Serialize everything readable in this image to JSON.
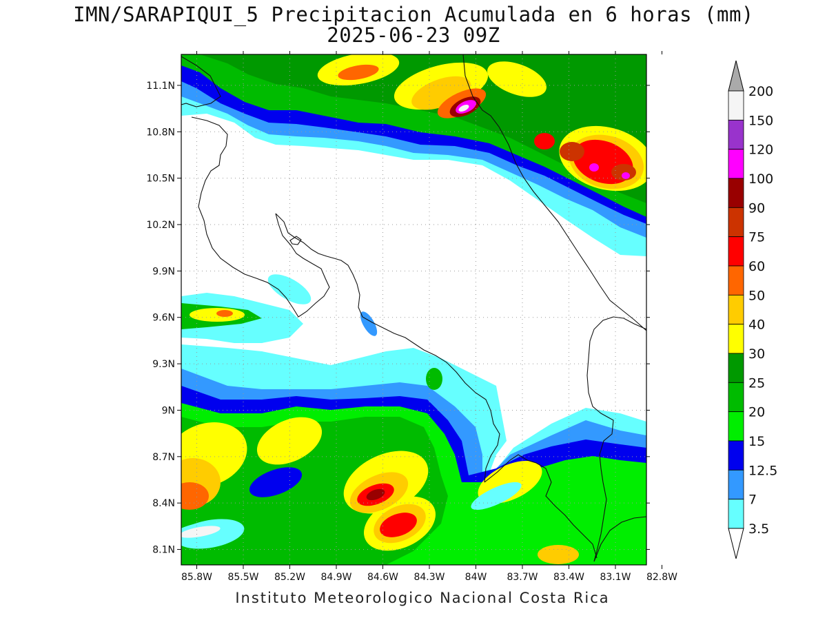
{
  "title": {
    "line1": "IMN/SARAPIQUI_5 Precipitacion Acumulada en 6 horas (mm)",
    "line2": "2025-06-23 09Z"
  },
  "footer": "Instituto Meteorologico Nacional Costa Rica",
  "map": {
    "lat_ticks": [
      "11.1N",
      "10.8N",
      "10.5N",
      "10.2N",
      "9.9N",
      "9.6N",
      "9.3N",
      "9N",
      "8.7N",
      "8.4N",
      "8.1N"
    ],
    "lon_ticks": [
      "85.8W",
      "85.5W",
      "85.2W",
      "84.9W",
      "84.6W",
      "84.3W",
      "84W",
      "83.7W",
      "83.4W",
      "83.1W",
      "82.8W"
    ],
    "lat_values": [
      11.1,
      10.8,
      10.5,
      10.2,
      9.9,
      9.6,
      9.3,
      9.0,
      8.7,
      8.4,
      8.1
    ],
    "lon_values": [
      -85.8,
      -85.5,
      -85.2,
      -84.9,
      -84.6,
      -84.3,
      -84.0,
      -83.7,
      -83.4,
      -83.1,
      -82.8
    ],
    "lon_range": [
      -85.9,
      -82.9
    ],
    "lat_range": [
      8.0,
      11.3
    ]
  },
  "legend": {
    "levels": [
      "200",
      "150",
      "120",
      "100",
      "90",
      "75",
      "60",
      "50",
      "40",
      "30",
      "25",
      "20",
      "15",
      "12.5",
      "7",
      "3.5"
    ],
    "colors": [
      "#f5f5f5",
      "#9933cc",
      "#ff00ff",
      "#990000",
      "#cc3300",
      "#ff0000",
      "#ff6600",
      "#ffcc00",
      "#ffff00",
      "#009900",
      "#00bb00",
      "#00ee00",
      "#0000ee",
      "#3399ff",
      "#66ffff"
    ],
    "top_triangle_color": "#aaaaaa",
    "bottom_triangle_color": "#ffffff"
  }
}
